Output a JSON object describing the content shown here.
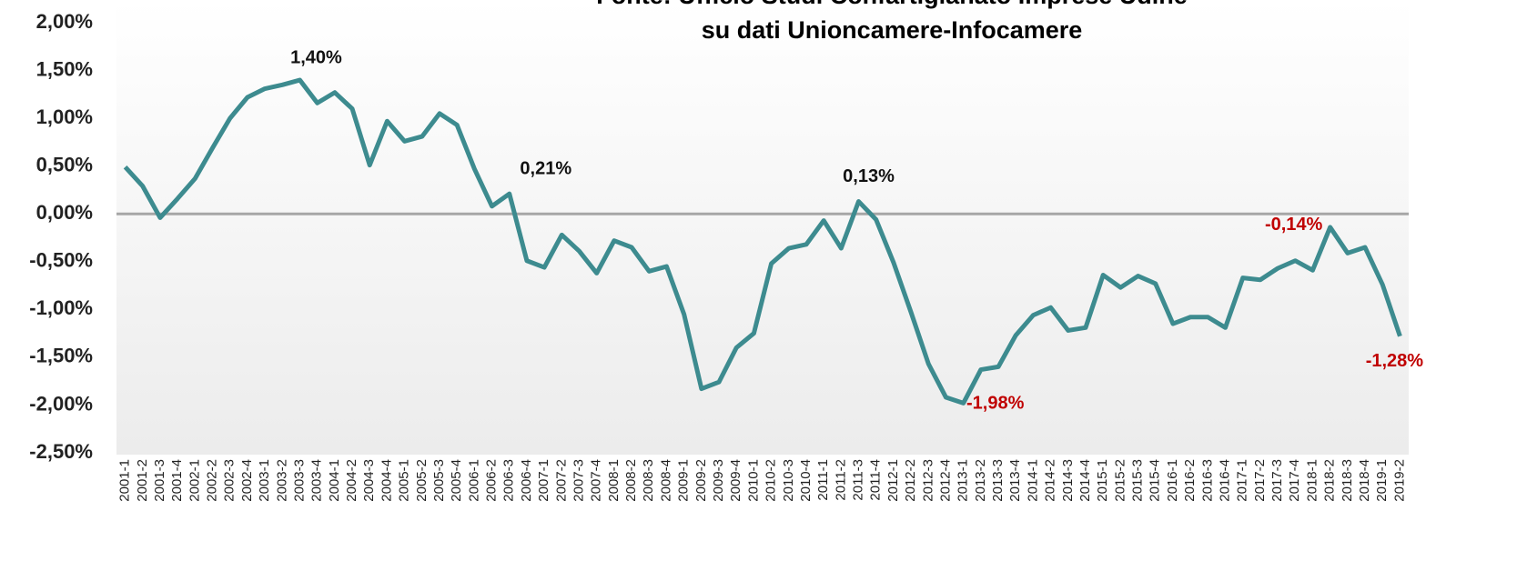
{
  "chart_data": {
    "type": "line",
    "title": "Fonte: Ufficio Studi Confartigianato Imprese Udine",
    "subtitle": "su dati Unioncamere-Infocamere",
    "categories": [
      "2001-1",
      "2001-2",
      "2001-3",
      "2001-4",
      "2002-1",
      "2002-2",
      "2002-3",
      "2002-4",
      "2003-1",
      "2003-2",
      "2003-3",
      "2003-4",
      "2004-1",
      "2004-2",
      "2004-3",
      "2004-4",
      "2005-1",
      "2005-2",
      "2005-3",
      "2005-4",
      "2006-1",
      "2006-2",
      "2006-3",
      "2006-4",
      "2007-1",
      "2007-2",
      "2007-3",
      "2007-4",
      "2008-1",
      "2008-2",
      "2008-3",
      "2008-4",
      "2009-1",
      "2009-2",
      "2009-3",
      "2009-4",
      "2010-1",
      "2010-2",
      "2010-3",
      "2010-4",
      "2011-1",
      "2011-2",
      "2011-3",
      "2011-4",
      "2012-1",
      "2012-2",
      "2012-3",
      "2012-4",
      "2013-1",
      "2013-2",
      "2013-3",
      "2013-4",
      "2014-1",
      "2014-2",
      "2014-3",
      "2014-4",
      "2015-1",
      "2015-2",
      "2015-3",
      "2015-4",
      "2016-1",
      "2016-2",
      "2016-3",
      "2016-4",
      "2017-1",
      "2017-2",
      "2017-3",
      "2017-4",
      "2018-1",
      "2018-2",
      "2018-3",
      "2018-4",
      "2019-1",
      "2019-2"
    ],
    "values": [
      0.49,
      0.29,
      -0.04,
      0.16,
      0.37,
      0.69,
      1.0,
      1.22,
      1.31,
      1.35,
      1.4,
      1.16,
      1.27,
      1.1,
      0.51,
      0.97,
      0.76,
      0.81,
      1.05,
      0.93,
      0.47,
      0.08,
      0.21,
      -0.49,
      -0.56,
      -0.22,
      -0.39,
      -0.62,
      -0.28,
      -0.35,
      -0.6,
      -0.55,
      -1.05,
      -1.83,
      -1.76,
      -1.4,
      -1.25,
      -0.52,
      -0.36,
      -0.32,
      -0.07,
      -0.36,
      0.13,
      -0.06,
      -0.51,
      -1.03,
      -1.57,
      -1.92,
      -1.98,
      -1.63,
      -1.6,
      -1.27,
      -1.06,
      -0.98,
      -1.22,
      -1.19,
      -0.64,
      -0.77,
      -0.65,
      -0.73,
      -1.15,
      -1.08,
      -1.08,
      -1.19,
      -0.67,
      -0.69,
      -0.57,
      -0.49,
      -0.59,
      -0.14,
      -0.41,
      -0.35,
      -0.74,
      -1.28
    ],
    "value_labels": [
      null,
      null,
      null,
      null,
      null,
      null,
      null,
      null,
      null,
      null,
      "1,40%",
      null,
      null,
      null,
      null,
      null,
      null,
      null,
      null,
      null,
      null,
      null,
      "0,21%",
      null,
      null,
      null,
      null,
      null,
      null,
      null,
      null,
      null,
      null,
      null,
      null,
      null,
      null,
      null,
      null,
      null,
      null,
      null,
      "0,13%",
      null,
      null,
      null,
      null,
      null,
      "-1,98%",
      null,
      null,
      null,
      null,
      null,
      null,
      null,
      null,
      null,
      null,
      null,
      null,
      null,
      null,
      null,
      null,
      null,
      null,
      null,
      null,
      "-0,14%",
      null,
      null,
      null,
      "-1,28%"
    ],
    "color": "#3d8b8f",
    "ylim": [
      -2.5,
      2
    ],
    "yticks": [
      {
        "value": -2.5,
        "label": "-2,50%"
      },
      {
        "value": -2,
        "label": "-2,00%"
      },
      {
        "value": -1.5,
        "label": "-1,50%"
      },
      {
        "value": -1,
        "label": "-1,00%"
      },
      {
        "value": -0.5,
        "label": "-0,50%"
      },
      {
        "value": 0,
        "label": "0,00%"
      },
      {
        "value": 0.5,
        "label": "0,50%"
      },
      {
        "value": 1,
        "label": "1,00%"
      },
      {
        "value": 1.5,
        "label": "1,50%"
      },
      {
        "value": 2,
        "label": "2,00%"
      }
    ],
    "grid": false
  }
}
